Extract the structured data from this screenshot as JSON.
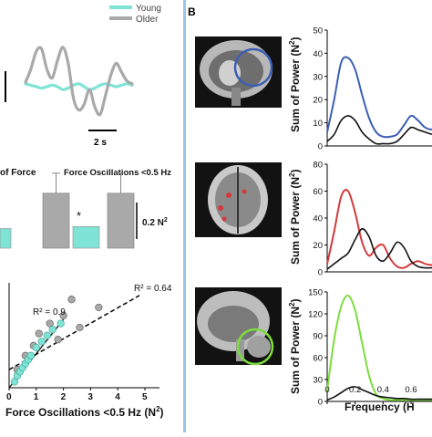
{
  "colors": {
    "young": "#7fe3d6",
    "older": "#a9a9a9",
    "blue": "#3b5fb5",
    "red": "#d43a3a",
    "green": "#7cdc3c",
    "black": "#111111",
    "panel_border": "#9fc3e6"
  },
  "panel_a": {
    "legend": {
      "young": "Young",
      "older": "Older"
    },
    "scale_bar_label": "2 s",
    "bar_label_left": "of Force",
    "bar_label_right": "Force Oscillations <0.5 Hz",
    "bar_scale_label": "0.2 N",
    "bar_scale_sup": "2",
    "star": "*",
    "scatter_r2_young": "R² = 0.9",
    "scatter_r2_older": "R² = 0.64",
    "scatter_xlabel": "Force Oscillations <0.5 Hz (N",
    "scatter_xlabel_sup": "2",
    "scatter_xlabel_end": ")",
    "scatter_ticks": [
      "0",
      "1",
      "2",
      "3",
      "4",
      "5"
    ]
  },
  "panel_b": {
    "letter": "B",
    "ylabel": "Sum of Power (N",
    "ylabel_sup": "2",
    "ylabel_end": ")",
    "xlabel": "Frequency (H",
    "x_ticks": [
      "0",
      "0.2",
      "0.4",
      "0.6"
    ]
  },
  "chart_data": [
    {
      "type": "line",
      "panel": "B-top",
      "ylim": [
        0,
        50
      ],
      "y_ticks": [
        "0",
        "10",
        "20",
        "30",
        "40",
        "50"
      ],
      "series": [
        {
          "x": [
            0.0,
            0.05,
            0.1,
            0.15,
            0.2,
            0.25,
            0.3,
            0.35,
            0.4,
            0.45,
            0.5,
            0.55,
            0.6,
            0.65,
            0.7,
            0.75
          ],
          "values": [
            6,
            20,
            36,
            38,
            33,
            22,
            12,
            6,
            4,
            4,
            5,
            9,
            13,
            11,
            8,
            7
          ],
          "color": "blue"
        },
        {
          "x": [
            0.0,
            0.05,
            0.1,
            0.15,
            0.2,
            0.25,
            0.3,
            0.35,
            0.4,
            0.45,
            0.5,
            0.55,
            0.6,
            0.65,
            0.7,
            0.75
          ],
          "values": [
            2,
            5,
            11,
            13,
            11,
            6,
            3,
            1,
            1,
            1,
            2,
            5,
            8,
            7,
            6,
            5
          ],
          "color": "black"
        }
      ]
    },
    {
      "type": "line",
      "panel": "B-middle",
      "ylim": [
        0,
        80
      ],
      "y_ticks": [
        "0",
        "20",
        "40",
        "60",
        "80"
      ],
      "series": [
        {
          "x": [
            0.0,
            0.05,
            0.1,
            0.15,
            0.2,
            0.25,
            0.3,
            0.35,
            0.4,
            0.45,
            0.5,
            0.55,
            0.6,
            0.65,
            0.7,
            0.75
          ],
          "values": [
            6,
            30,
            56,
            60,
            44,
            22,
            12,
            18,
            20,
            10,
            4,
            3,
            6,
            8,
            6,
            5
          ],
          "color": "red"
        },
        {
          "x": [
            0.0,
            0.05,
            0.1,
            0.15,
            0.2,
            0.25,
            0.3,
            0.35,
            0.4,
            0.45,
            0.5,
            0.55,
            0.6,
            0.65,
            0.7,
            0.75
          ],
          "values": [
            2,
            6,
            10,
            14,
            24,
            32,
            26,
            12,
            8,
            14,
            22,
            18,
            8,
            4,
            3,
            3
          ],
          "color": "black"
        }
      ]
    },
    {
      "type": "line",
      "panel": "B-bottom",
      "ylim": [
        0,
        150
      ],
      "y_ticks": [
        "0",
        "30",
        "60",
        "90",
        "120",
        "150"
      ],
      "series": [
        {
          "x": [
            0.0,
            0.05,
            0.1,
            0.15,
            0.2,
            0.25,
            0.3,
            0.35,
            0.4,
            0.45,
            0.5,
            0.55,
            0.6,
            0.65,
            0.7,
            0.75
          ],
          "values": [
            15,
            85,
            130,
            145,
            125,
            80,
            35,
            10,
            4,
            2,
            2,
            2,
            2,
            2,
            2,
            2
          ],
          "color": "green"
        },
        {
          "x": [
            0.0,
            0.05,
            0.1,
            0.15,
            0.2,
            0.25,
            0.3,
            0.35,
            0.4,
            0.45,
            0.5,
            0.55,
            0.6,
            0.65,
            0.7,
            0.75
          ],
          "values": [
            2,
            6,
            12,
            18,
            20,
            16,
            12,
            8,
            6,
            5,
            4,
            4,
            3,
            3,
            3,
            3
          ],
          "color": "black"
        }
      ]
    },
    {
      "type": "line",
      "panel": "A-force-trace",
      "series": [
        {
          "name": "Young",
          "x": [
            0,
            1,
            2,
            3,
            4,
            5,
            6,
            7,
            8,
            9,
            10,
            11,
            12,
            13,
            14,
            15,
            16,
            17,
            18,
            19,
            20
          ],
          "values": [
            0.2,
            0.1,
            0.0,
            -0.1,
            0.0,
            0.1,
            0.0,
            -0.2,
            -0.1,
            0.1,
            0.2,
            0.0,
            -0.2,
            -0.1,
            0.1,
            0.2,
            0.1,
            0.0,
            0.1,
            0.2,
            0.1
          ],
          "color": "young"
        },
        {
          "name": "Older",
          "x": [
            0,
            1,
            2,
            3,
            4,
            5,
            6,
            7,
            8,
            9,
            10,
            11,
            12,
            13,
            14,
            15,
            16,
            17,
            18,
            19,
            20
          ],
          "values": [
            0.3,
            1.2,
            2.4,
            2.6,
            1.2,
            0.6,
            1.8,
            2.7,
            1.6,
            -0.8,
            -1.6,
            -1.2,
            -0.2,
            -1.4,
            -1.9,
            -0.6,
            0.8,
            1.6,
            1.0,
            0.4,
            0.2
          ],
          "color": "older"
        }
      ]
    },
    {
      "type": "bar",
      "panel": "A-bars",
      "series": [
        {
          "group": "left",
          "young": 0.1,
          "older": 0.28
        },
        {
          "group": "right",
          "young": 0.11,
          "older": 0.28
        }
      ]
    },
    {
      "type": "scatter",
      "panel": "A-scatter",
      "xlim": [
        0,
        5.2
      ],
      "ylim": [
        0,
        5
      ],
      "young_points": [
        [
          0.2,
          0.3
        ],
        [
          0.3,
          0.6
        ],
        [
          0.4,
          0.8
        ],
        [
          0.5,
          1.0
        ],
        [
          0.6,
          1.2
        ],
        [
          0.7,
          1.4
        ],
        [
          0.8,
          1.6
        ],
        [
          1.0,
          2.0
        ],
        [
          1.2,
          2.3
        ],
        [
          1.4,
          2.6
        ],
        [
          1.6,
          2.9
        ],
        [
          1.9,
          3.2
        ]
      ],
      "older_points": [
        [
          0.3,
          0.9
        ],
        [
          0.6,
          1.6
        ],
        [
          0.9,
          2.1
        ],
        [
          1.1,
          2.7
        ],
        [
          1.5,
          3.2
        ],
        [
          1.8,
          2.4
        ],
        [
          2.0,
          3.6
        ],
        [
          2.3,
          4.4
        ],
        [
          2.6,
          3.0
        ],
        [
          3.3,
          4.0
        ]
      ],
      "fit_young": [
        [
          0,
          0
        ],
        [
          2.0,
          3.4
        ]
      ],
      "fit_older": [
        [
          0,
          0.9
        ],
        [
          4.8,
          4.6
        ]
      ]
    }
  ]
}
